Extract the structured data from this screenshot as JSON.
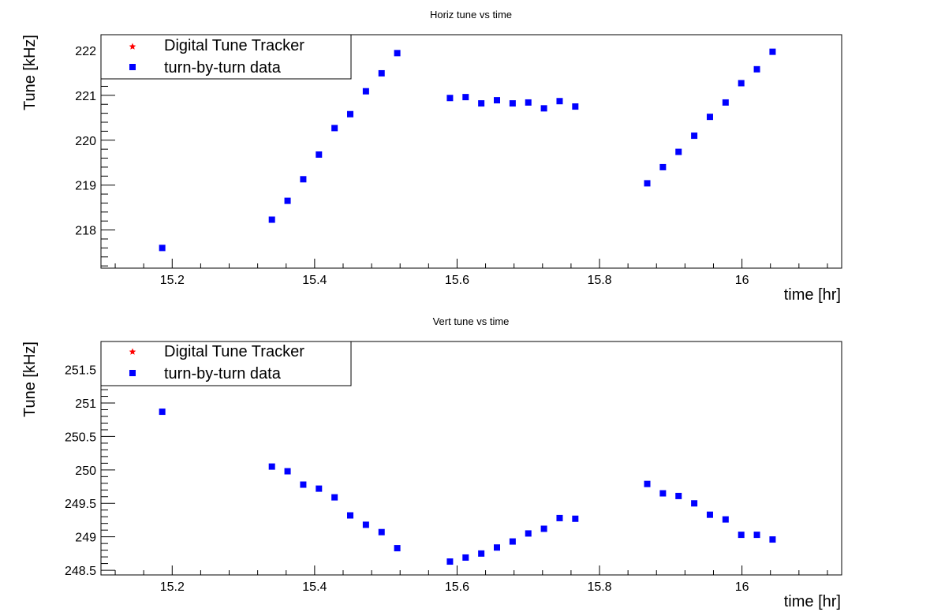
{
  "colors": {
    "turn_by_turn": "#0000ff",
    "digital_tracker": "#ff0000",
    "axis": "#000000",
    "background": "#ffffff"
  },
  "chart_data": [
    {
      "type": "scatter",
      "title": "Horiz tune vs time",
      "xlabel": "time [hr]",
      "ylabel": "Tune [kHz]",
      "xlim": [
        15.1,
        16.14
      ],
      "ylim": [
        217.15,
        222.35
      ],
      "xticks": [
        15.2,
        15.4,
        15.6,
        15.8,
        16.0
      ],
      "xtick_labels": [
        "15.2",
        "15.4",
        "15.6",
        "15.8",
        "16"
      ],
      "yticks": [
        218,
        219,
        220,
        221,
        222
      ],
      "ytick_labels": [
        "218",
        "219",
        "220",
        "221",
        "222"
      ],
      "grid": false,
      "legend_position": "top-left",
      "legend": [
        {
          "label": "Digital Tune Tracker",
          "marker": "star",
          "color": "#ff0000"
        },
        {
          "label": "turn-by-turn data",
          "marker": "square",
          "color": "#0000ff"
        }
      ],
      "series": [
        {
          "name": "Digital Tune Tracker",
          "marker": "star",
          "color": "#ff0000",
          "points": []
        },
        {
          "name": "turn-by-turn data",
          "marker": "square",
          "color": "#0000ff",
          "points": [
            [
              15.186,
              217.6
            ],
            [
              15.34,
              218.23
            ],
            [
              15.362,
              218.65
            ],
            [
              15.384,
              219.13
            ],
            [
              15.406,
              219.68
            ],
            [
              15.428,
              220.27
            ],
            [
              15.45,
              220.58
            ],
            [
              15.472,
              221.09
            ],
            [
              15.494,
              221.49
            ],
            [
              15.516,
              221.94
            ],
            [
              15.59,
              220.94
            ],
            [
              15.612,
              220.96
            ],
            [
              15.634,
              220.82
            ],
            [
              15.656,
              220.89
            ],
            [
              15.678,
              220.82
            ],
            [
              15.7,
              220.84
            ],
            [
              15.722,
              220.71
            ],
            [
              15.744,
              220.87
            ],
            [
              15.766,
              220.75
            ],
            [
              15.867,
              219.04
            ],
            [
              15.889,
              219.4
            ],
            [
              15.911,
              219.74
            ],
            [
              15.933,
              220.1
            ],
            [
              15.955,
              220.52
            ],
            [
              15.977,
              220.84
            ],
            [
              15.999,
              221.27
            ],
            [
              16.021,
              221.58
            ],
            [
              16.043,
              221.97
            ]
          ]
        }
      ]
    },
    {
      "type": "scatter",
      "title": "Vert tune vs time",
      "xlabel": "time [hr]",
      "ylabel": "Tune [kHz]",
      "xlim": [
        15.1,
        16.14
      ],
      "ylim": [
        248.43,
        251.92
      ],
      "xticks": [
        15.2,
        15.4,
        15.6,
        15.8,
        16.0
      ],
      "xtick_labels": [
        "15.2",
        "15.4",
        "15.6",
        "15.8",
        "16"
      ],
      "yticks": [
        248.5,
        249,
        249.5,
        250,
        250.5,
        251,
        251.5
      ],
      "ytick_labels": [
        "248.5",
        "249",
        "249.5",
        "250",
        "250.5",
        "251",
        "251.5"
      ],
      "grid": false,
      "legend_position": "top-left",
      "legend": [
        {
          "label": "Digital Tune Tracker",
          "marker": "star",
          "color": "#ff0000"
        },
        {
          "label": "turn-by-turn data",
          "marker": "square",
          "color": "#0000ff"
        }
      ],
      "series": [
        {
          "name": "Digital Tune Tracker",
          "marker": "star",
          "color": "#ff0000",
          "points": []
        },
        {
          "name": "turn-by-turn data",
          "marker": "square",
          "color": "#0000ff",
          "points": [
            [
              15.186,
              250.87
            ],
            [
              15.34,
              250.05
            ],
            [
              15.362,
              249.98
            ],
            [
              15.384,
              249.78
            ],
            [
              15.406,
              249.72
            ],
            [
              15.428,
              249.59
            ],
            [
              15.45,
              249.32
            ],
            [
              15.472,
              249.18
            ],
            [
              15.494,
              249.07
            ],
            [
              15.516,
              248.83
            ],
            [
              15.59,
              248.63
            ],
            [
              15.612,
              248.69
            ],
            [
              15.634,
              248.75
            ],
            [
              15.656,
              248.84
            ],
            [
              15.678,
              248.93
            ],
            [
              15.7,
              249.05
            ],
            [
              15.722,
              249.12
            ],
            [
              15.744,
              249.28
            ],
            [
              15.766,
              249.27
            ],
            [
              15.867,
              249.79
            ],
            [
              15.889,
              249.65
            ],
            [
              15.911,
              249.61
            ],
            [
              15.933,
              249.5
            ],
            [
              15.955,
              249.33
            ],
            [
              15.977,
              249.26
            ],
            [
              15.999,
              249.03
            ],
            [
              16.021,
              249.03
            ],
            [
              16.043,
              248.96
            ]
          ]
        }
      ]
    }
  ]
}
